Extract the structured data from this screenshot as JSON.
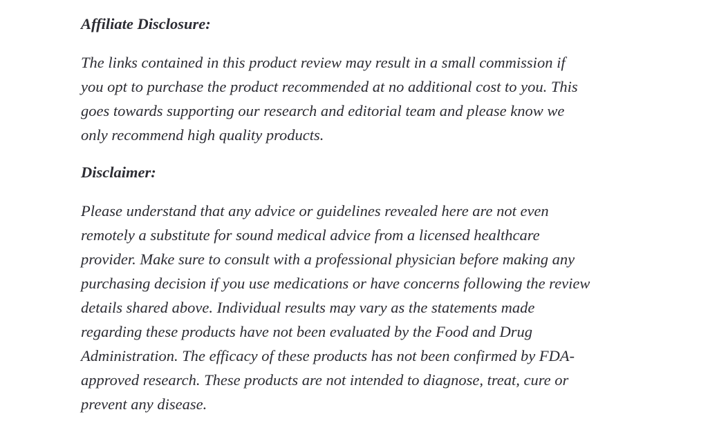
{
  "document": {
    "colors": {
      "background": "#ffffff",
      "text": "#2c2c33"
    },
    "affiliate": {
      "heading": "Affiliate Disclosure:",
      "body_lines": [
        "The links contained in this product review may result in a small commission if",
        "you opt to purchase the product recommended at no additional cost to you. This",
        "goes towards supporting our research and editorial team and please know we",
        "only recommend high quality products."
      ]
    },
    "disclaimer": {
      "heading": "Disclaimer:",
      "body_lines": [
        "Please understand that any advice or guidelines revealed here are not even",
        "remotely a substitute for sound medical advice from a licensed healthcare",
        "provider. Make sure to consult with a professional physician before making any",
        "purchasing decision if you use medications or have concerns following the review",
        "details shared above. Individual results may vary as the statements made",
        "regarding these products have not been evaluated by the Food and Drug",
        "Administration. The efficacy of these products has not been confirmed by FDA-",
        "approved research. These products are not intended to diagnose, treat, cure or",
        "prevent any disease."
      ]
    }
  }
}
